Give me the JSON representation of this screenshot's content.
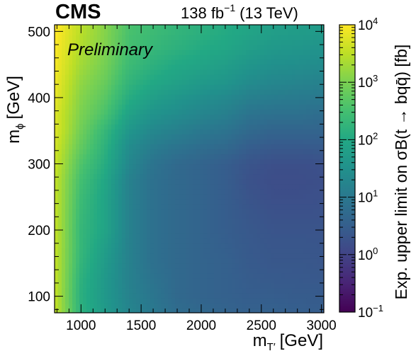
{
  "header": {
    "experiment": "CMS",
    "luminosity": "138 fb",
    "lumi_exponent": "−1",
    "energy": "(13 TeV)",
    "status": "Preliminary"
  },
  "chart_data": {
    "type": "heatmap",
    "x_axis": {
      "label_main": "m",
      "label_sub": "T′",
      "label_unit": "[GeV]",
      "range": [
        780,
        3020
      ],
      "ticks": [
        1000,
        1500,
        2000,
        2500,
        3000
      ],
      "tick_labels": [
        "1000",
        "1500",
        "2000",
        "2500",
        "3000"
      ]
    },
    "y_axis": {
      "label_main": "m",
      "label_sub": "ϕ",
      "label_unit": "[GeV]",
      "range": [
        75,
        510
      ],
      "ticks": [
        100,
        200,
        300,
        400,
        500
      ],
      "tick_labels": [
        "100",
        "200",
        "300",
        "400",
        "500"
      ]
    },
    "colorbar": {
      "label": "Exp. upper limit on σB(t → bqq̄) [fb]",
      "scale": "log",
      "range": [
        0.1,
        10000
      ],
      "colormap": "viridis",
      "tick_values": [
        0.1,
        1,
        10,
        100,
        1000,
        10000
      ],
      "tick_labels": [
        {
          "base": "10",
          "exp": "−1"
        },
        {
          "base": "10",
          "exp": "0"
        },
        {
          "base": "10",
          "exp": "1"
        },
        {
          "base": "10",
          "exp": "2"
        },
        {
          "base": "10",
          "exp": "3"
        },
        {
          "base": "10",
          "exp": "4"
        }
      ]
    },
    "x_values": [
      800,
      1000,
      1200,
      1400,
      1600,
      1800,
      2000,
      2200,
      2400,
      2600,
      2800,
      3000
    ],
    "y_values": [
      75,
      100,
      125,
      150,
      175,
      200,
      225,
      250,
      275,
      300,
      325,
      350,
      375,
      400,
      425,
      450,
      475,
      500
    ],
    "z_values": [
      [
        3000,
        150,
        50,
        18,
        10,
        6,
        5,
        4,
        3.5,
        3.5,
        3.2,
        3
      ],
      [
        3000,
        140,
        45,
        16,
        9,
        5,
        4,
        3.5,
        3,
        3,
        2.8,
        2.7
      ],
      [
        3000,
        150,
        45,
        15,
        8,
        5,
        4,
        3.5,
        2.8,
        2.6,
        2.5,
        2.4
      ],
      [
        3000,
        180,
        50,
        15,
        7,
        5,
        4,
        3.5,
        2.6,
        2.3,
        2.3,
        2.2
      ],
      [
        3000,
        200,
        60,
        15,
        7,
        5,
        4,
        3.2,
        2.5,
        2.2,
        2.2,
        2.1
      ],
      [
        3000,
        200,
        80,
        15,
        7,
        5,
        4,
        3,
        2.4,
        2,
        2,
        2
      ],
      [
        3000,
        220,
        80,
        15,
        7,
        5,
        4,
        3,
        2.2,
        1.8,
        1.8,
        1.8
      ],
      [
        3000,
        250,
        80,
        15,
        7,
        5,
        4,
        3,
        2,
        1.6,
        1.6,
        1.7
      ],
      [
        3000,
        300,
        90,
        15,
        7,
        5,
        4,
        3,
        1.8,
        1.5,
        1.5,
        1.6
      ],
      [
        3500,
        400,
        120,
        20,
        8,
        5,
        4,
        3,
        2,
        1.6,
        1.6,
        1.7
      ],
      [
        4000,
        600,
        150,
        25,
        12,
        8,
        6,
        5,
        3,
        2.5,
        2.5,
        2.6
      ],
      [
        5000,
        800,
        200,
        40,
        20,
        14,
        10,
        8,
        5,
        4,
        4,
        4
      ],
      [
        5000,
        1000,
        350,
        70,
        35,
        25,
        18,
        14,
        8,
        7,
        7,
        6
      ],
      [
        6000,
        1200,
        500,
        120,
        60,
        40,
        28,
        22,
        14,
        12,
        11,
        10
      ],
      [
        7000,
        1500,
        700,
        180,
        100,
        70,
        50,
        40,
        25,
        20,
        18,
        16
      ],
      [
        8000,
        2000,
        900,
        250,
        150,
        100,
        80,
        60,
        40,
        30,
        28,
        25
      ],
      [
        9000,
        2500,
        1100,
        300,
        200,
        150,
        110,
        90,
        60,
        45,
        40,
        35
      ],
      [
        10000,
        3000,
        1200,
        350,
        250,
        180,
        140,
        110,
        80,
        60,
        55,
        50
      ]
    ]
  }
}
